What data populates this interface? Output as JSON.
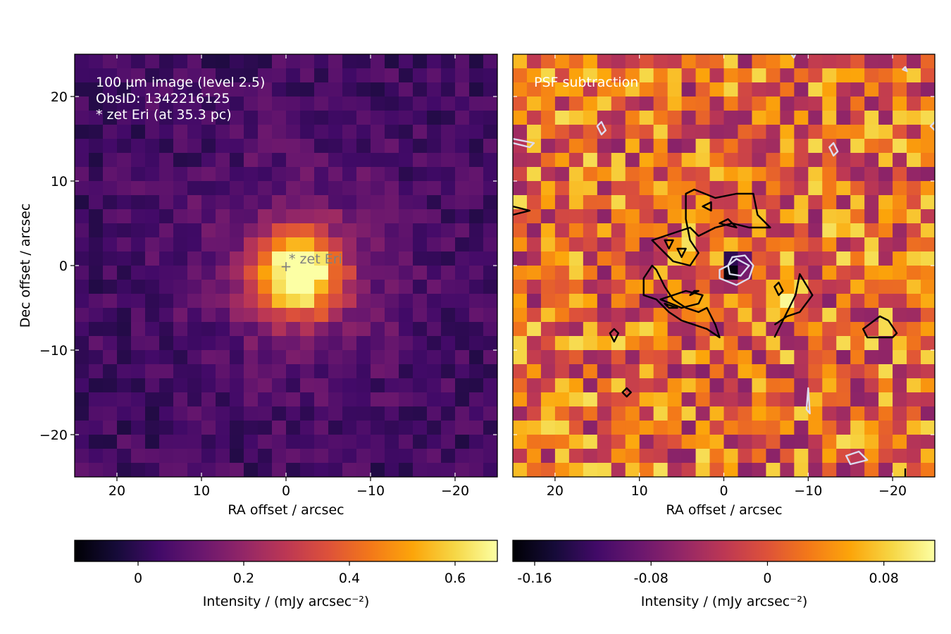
{
  "chart_data": [
    {
      "type": "heatmap",
      "title": "",
      "xlabel": "RA offset / arcsec",
      "ylabel": "Dec offset / arcsec",
      "xlim": [
        25,
        -25
      ],
      "ylim": [
        -25,
        25
      ],
      "xticks": [
        {
          "value": 20,
          "label": "20"
        },
        {
          "value": 10,
          "label": "10"
        },
        {
          "value": 0,
          "label": "0"
        },
        {
          "value": -10,
          "label": "−10"
        },
        {
          "value": -20,
          "label": "−20"
        }
      ],
      "yticks": [
        {
          "value": 20,
          "label": "20"
        },
        {
          "value": 10,
          "label": "10"
        },
        {
          "value": 0,
          "label": "0"
        },
        {
          "value": -10,
          "label": "−10"
        },
        {
          "value": -20,
          "label": "−20"
        }
      ],
      "colormap": "inferno",
      "annotation_lines": [
        "100 µm image (level 2.5)",
        "ObsID: 1342216125",
        "* zet Eri (at 35.3 pc)"
      ],
      "star_marker": {
        "ra": 0,
        "dec": 0,
        "symbol": "+",
        "label": "* zet Eri"
      },
      "colorbar": {
        "label": "Intensity / (mJy arcsec⁻²)",
        "range": [
          -0.12,
          0.68
        ],
        "ticks": [
          {
            "value": 0,
            "label": "0"
          },
          {
            "value": 0.2,
            "label": "0.2"
          },
          {
            "value": 0.4,
            "label": "0.4"
          },
          {
            "value": 0.6,
            "label": "0.6"
          }
        ]
      },
      "peak_intensity": 0.68,
      "source_offset": [
        -1.5,
        -1.0
      ]
    },
    {
      "type": "heatmap",
      "title": "",
      "xlabel": "RA offset / arcsec",
      "ylabel": "",
      "xlim": [
        25,
        -25
      ],
      "ylim": [
        -25,
        25
      ],
      "xticks": [
        {
          "value": 20,
          "label": "20"
        },
        {
          "value": 10,
          "label": "10"
        },
        {
          "value": 0,
          "label": "0"
        },
        {
          "value": -10,
          "label": "−10"
        },
        {
          "value": -20,
          "label": "−20"
        }
      ],
      "colormap": "inferno",
      "annotation_lines": [
        "PSF subtraction"
      ],
      "colorbar": {
        "label": "Intensity / (mJy arcsec⁻²)",
        "range": [
          -0.175,
          0.115
        ],
        "ticks": [
          {
            "value": -0.16,
            "label": "-0.16"
          },
          {
            "value": -0.08,
            "label": "-0.08"
          },
          {
            "value": 0,
            "label": "0"
          },
          {
            "value": 0.08,
            "label": "0.08"
          }
        ]
      },
      "contours": {
        "positive_color": "#000000",
        "negative_color": "#dcdcf0"
      }
    }
  ]
}
